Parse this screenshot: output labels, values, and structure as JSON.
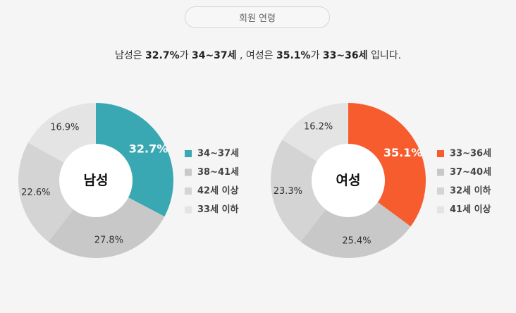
{
  "tab_label": "회원 연령",
  "summary": {
    "p1": "남성은 ",
    "male_pct": "32.7%",
    "p2": "가 ",
    "male_range": "34~37세",
    "p3": " , 여성은 ",
    "female_pct": "35.1%",
    "p4": "가 ",
    "female_range": "33~36세",
    "p5": " 입니다."
  },
  "chart_data": [
    {
      "type": "pie",
      "center_label": "남성",
      "categories": [
        "34~37세",
        "38~41세",
        "42세 이상",
        "33세 이하"
      ],
      "values": [
        32.7,
        27.8,
        22.6,
        16.9
      ],
      "value_labels": [
        "32.7%",
        "27.8%",
        "22.6%",
        "16.9%"
      ],
      "colors": [
        "#39a8b3",
        "#c8c8c8",
        "#d4d4d4",
        "#e4e4e4"
      ],
      "highlight_index": 0,
      "legend_position": "right"
    },
    {
      "type": "pie",
      "center_label": "여성",
      "categories": [
        "33~36세",
        "37~40세",
        "32세 이하",
        "41세 이상"
      ],
      "values": [
        35.1,
        25.4,
        23.3,
        16.2
      ],
      "value_labels": [
        "35.1%",
        "25.4%",
        "23.3%",
        "16.2%"
      ],
      "colors": [
        "#f75c2f",
        "#c8c8c8",
        "#d4d4d4",
        "#e4e4e4"
      ],
      "highlight_index": 0,
      "legend_position": "right"
    }
  ]
}
